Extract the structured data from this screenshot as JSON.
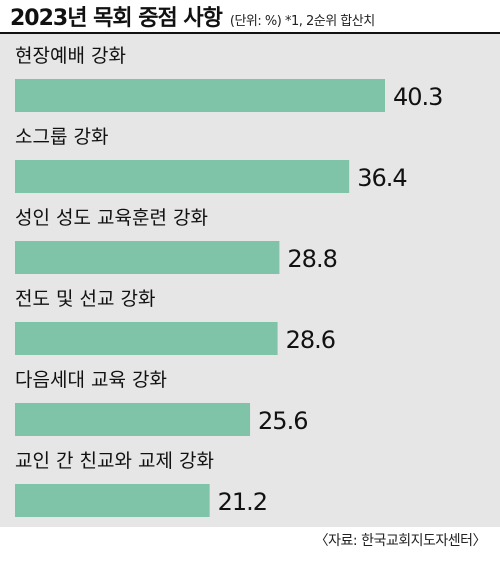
{
  "chart_data": {
    "type": "bar",
    "title": "2023년 목회 중점 사항",
    "subtitle": "(단위: %) *1, 2순위 합산치",
    "categories": [
      "현장예배 강화",
      "소그룹 강화",
      "성인 성도 교육훈련 강화",
      "전도 및 선교 강화",
      "다음세대 교육 강화",
      "교인 간 친교와 교제 강화"
    ],
    "values": [
      40.3,
      36.4,
      28.8,
      28.6,
      25.6,
      21.2
    ],
    "value_labels": [
      "40.3",
      "36.4",
      "28.8",
      "28.6",
      "25.6",
      "21.2"
    ],
    "orientation": "horizontal",
    "xlim": [
      0,
      40.3
    ],
    "grid": false,
    "legend": "none",
    "bar_color": "#7fc3a9",
    "background_color": "#e6e6e6"
  },
  "source": "〈자료: 한국교회지도자센터〉"
}
